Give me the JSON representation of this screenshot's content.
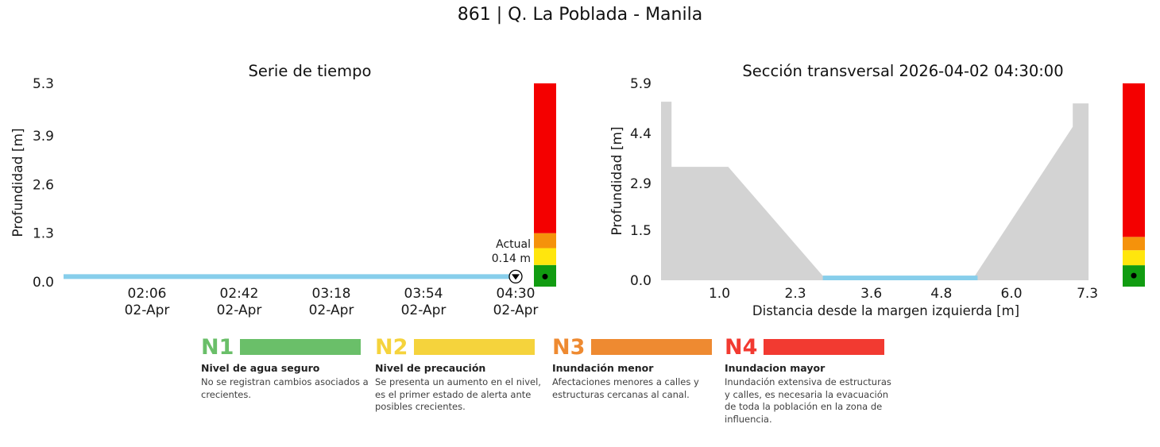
{
  "figure": {
    "title": "861 | Q. La Poblada - Manila"
  },
  "chart_data": [
    {
      "type": "line",
      "title": "Serie de tiempo",
      "ylabel": "Profundidad [m]",
      "ylim": [
        0.0,
        5.3
      ],
      "yticks": [
        "0.0",
        "1.3",
        "2.6",
        "3.9",
        "5.3"
      ],
      "xticks": [
        {
          "time": "02:06",
          "date": "02-Apr"
        },
        {
          "time": "02:42",
          "date": "02-Apr"
        },
        {
          "time": "03:18",
          "date": "02-Apr"
        },
        {
          "time": "03:54",
          "date": "02-Apr"
        },
        {
          "time": "04:30",
          "date": "02-Apr"
        }
      ],
      "series": [
        {
          "name": "nivel-de-agua",
          "color": "#87ceeb",
          "values": [
            0.14,
            0.14,
            0.14,
            0.14,
            0.14,
            0.14
          ]
        }
      ],
      "annotation": {
        "line1": "Actual",
        "line2": "0.14 m",
        "value_m": 0.14
      },
      "alert_bar": {
        "bounds_m": [
          0,
          0.45,
          0.9,
          1.3,
          5.3
        ],
        "colors": [
          "#119c11",
          "#ffe60d",
          "#f5920b",
          "#f40000"
        ],
        "marker_value_m": 0.14
      }
    },
    {
      "type": "area",
      "title": "Sección transversal 2026-04-02 04:30:00",
      "ylabel": "Profundidad [m]",
      "xlabel": "Distancia desde la margen izquierda [m]",
      "ylim": [
        0.0,
        5.9
      ],
      "yticks": [
        "0.0",
        "1.5",
        "2.9",
        "4.4",
        "5.9"
      ],
      "xlim": [
        0.0,
        7.7
      ],
      "xticks": [
        "1.0",
        "2.3",
        "3.6",
        "4.8",
        "6.0",
        "7.3"
      ],
      "terrain_color": "#d3d3d3",
      "water_color": "#87ceeb",
      "terrain_profile_m": [
        [
          0,
          5.35
        ],
        [
          0.18,
          5.35
        ],
        [
          0.18,
          3.4
        ],
        [
          1.15,
          3.4
        ],
        [
          2.8,
          0.07
        ],
        [
          5.35,
          0.07
        ],
        [
          7.05,
          4.6
        ],
        [
          7.05,
          5.3
        ],
        [
          7.32,
          5.3
        ],
        [
          7.32,
          0
        ]
      ],
      "water": {
        "from_m": 2.77,
        "to_m": 5.42,
        "level_m": 0.14
      },
      "alert_bar": {
        "bounds_m": [
          0,
          0.45,
          0.9,
          1.3,
          5.9
        ],
        "colors": [
          "#119c11",
          "#ffe60d",
          "#f5920b",
          "#f40000"
        ],
        "marker_value_m": 0.14
      }
    }
  ],
  "levels": [
    {
      "code": "N1",
      "color": "#6abf69",
      "title": "Nivel de agua seguro",
      "description": "No se registran cambios asociados a crecientes."
    },
    {
      "code": "N2",
      "color": "#f5d33c",
      "title": "Nivel de precaución",
      "description": "Se presenta un aumento en el nivel, es el primer estado de alerta ante posibles crecientes."
    },
    {
      "code": "N3",
      "color": "#ee8a31",
      "title": "Inundación menor",
      "description": "Afectaciones menores a calles y estructuras cercanas al canal."
    },
    {
      "code": "N4",
      "color": "#f23a31",
      "title": "Inundacion mayor",
      "description": "Inundación extensiva de estructuras y calles, es necesaria la evacuación de toda la población en la zona de influencia."
    }
  ]
}
